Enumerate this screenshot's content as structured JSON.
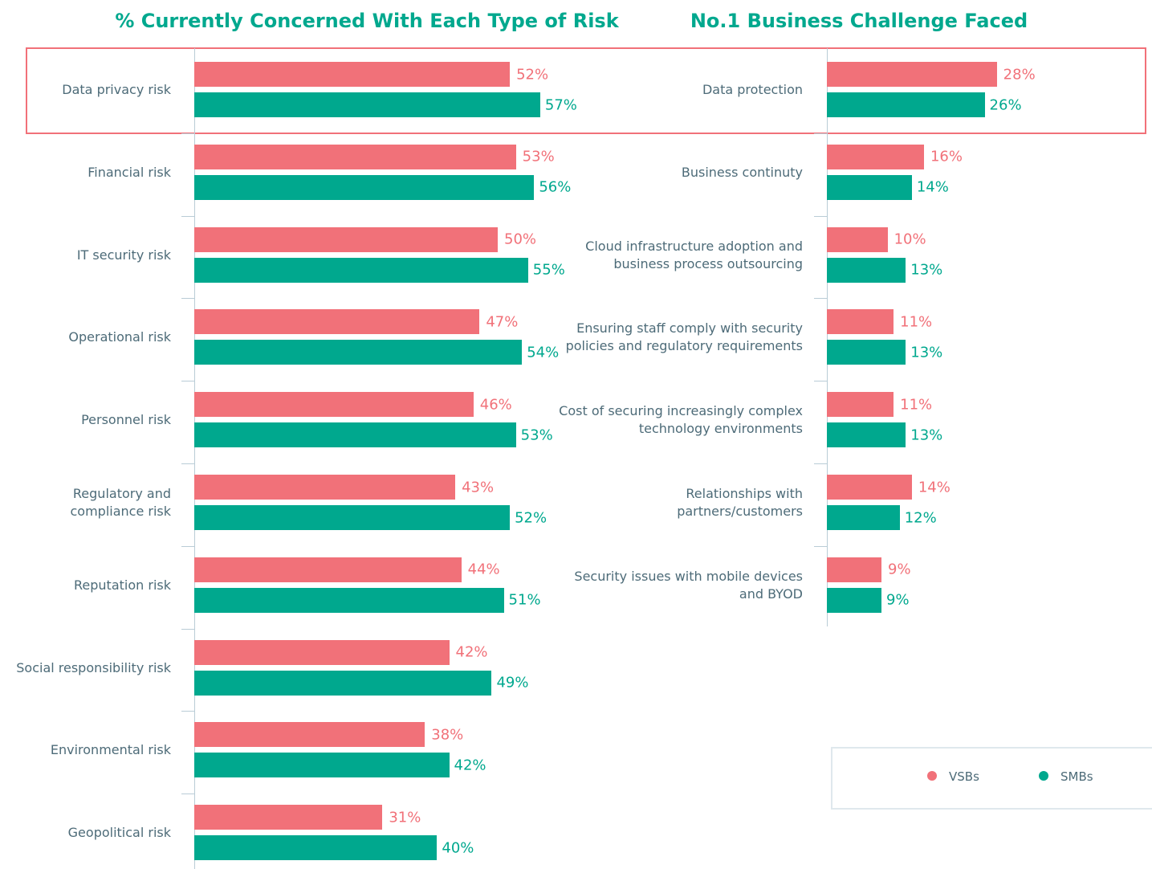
{
  "chart_data": [
    {
      "type": "bar",
      "orientation": "horizontal",
      "title": "% Currently Concerned With Each Type of Risk",
      "categories": [
        "Data privacy risk",
        "Financial risk",
        "IT security risk",
        "Operational risk",
        "Personnel risk",
        "Regulatory and compliance risk",
        "Reputation risk",
        "Social responsibility risk",
        "Environmental risk",
        "Geopolitical risk"
      ],
      "series": [
        {
          "color": "#f17179",
          "values": [
            52,
            53,
            50,
            47,
            46,
            43,
            44,
            42,
            38,
            31
          ],
          "value_labels": [
            "52%",
            "53%",
            "50%",
            "47%",
            "46%",
            "43%",
            "44%",
            "42%",
            "38%",
            "31%"
          ]
        },
        {
          "color": "#00a88e",
          "values": [
            57,
            56,
            55,
            54,
            53,
            52,
            51,
            49,
            42,
            40
          ],
          "value_labels": [
            "57%",
            "56%",
            "55%",
            "54%",
            "53%",
            "52%",
            "51%",
            "49%",
            "42%",
            "40%"
          ]
        }
      ]
    },
    {
      "type": "bar",
      "orientation": "horizontal",
      "title": "No.1 Business Challenge Faced",
      "categories": [
        "Data protection",
        "Business continuty",
        "Cloud infrastructure adoption and business process outsourcing",
        "Ensuring staff comply with security policies and regulatory requirements",
        "Cost of securing increasingly complex technology environments",
        "Relationships with partners/customers",
        "Security issues with mobile devices and BYOD"
      ],
      "series": [
        {
          "name": "VSBs",
          "color": "#f17179",
          "values": [
            28,
            16,
            10,
            11,
            11,
            14,
            9
          ],
          "value_labels": [
            "28%",
            "16%",
            "10%",
            "11%",
            "11%",
            "14%",
            "9%"
          ]
        },
        {
          "name": "SMBs",
          "color": "#00a88e",
          "values": [
            26,
            14,
            13,
            13,
            13,
            12,
            9
          ],
          "value_labels": [
            "26%",
            "14%",
            "13%",
            "13%",
            "13%",
            "12%",
            "9%"
          ]
        }
      ],
      "legend": "bottom-right"
    }
  ]
}
